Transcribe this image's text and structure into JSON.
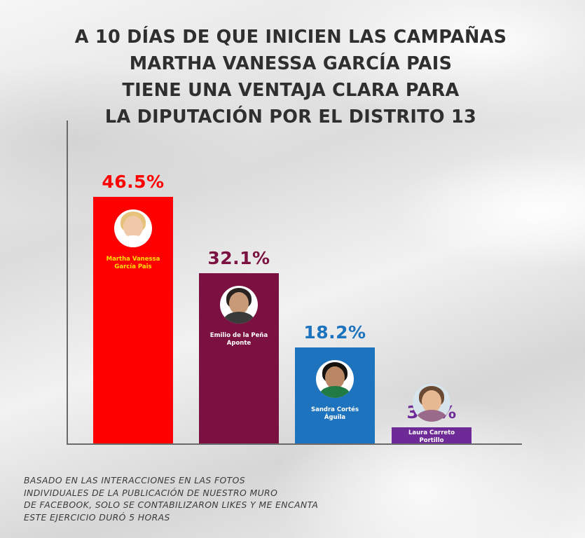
{
  "title_lines": [
    "A 10 DÍAS DE QUE INICIEN LAS CAMPAÑAS",
    "MARTHA VANESSA GARCÍA PAIS",
    "TIENE UNA VENTAJA CLARA  PARA",
    "LA DIPUTACIÓN POR EL DISTRITO 13"
  ],
  "chart_data": {
    "type": "bar",
    "categories": [
      [
        "Martha Vanessa",
        "García Pais"
      ],
      [
        "Emilio de la Peña",
        "Aponte"
      ],
      [
        "Sandra Cortés",
        "Águila"
      ],
      [
        "Laura Carreto",
        "Portillo"
      ]
    ],
    "values": [
      46.5,
      32.1,
      18.2,
      3.2
    ],
    "value_labels": [
      "46.5%",
      "32.1%",
      "18.2%",
      "3.2%"
    ],
    "colors": [
      "#fe0000",
      "#7b1140",
      "#1d73be",
      "#6e2a96"
    ],
    "label_colors": [
      "#fe0000",
      "#7b1140",
      "#1d73be",
      "#6e2a96"
    ],
    "name_colors": [
      "#ffe000",
      "#ffffff",
      "#ffffff",
      "#ffffff"
    ],
    "avatar_icons": [
      "candidate-1-photo-icon",
      "candidate-2-photo-icon",
      "candidate-3-photo-icon",
      "candidate-4-photo-icon"
    ],
    "grid": false,
    "legend": "none"
  },
  "footnote_lines": [
    "BASADO EN LAS INTERACCIONES EN LAS FOTOS",
    "INDIVIDUALES DE LA PUBLICACIÓN DE NUESTRO MURO",
    "DE FACEBOOK, SOLO SE CONTABILIZARON LIKES Y ME ENCANTA",
    "ESTE EJERCICIO DURÓ 5 HORAS"
  ]
}
